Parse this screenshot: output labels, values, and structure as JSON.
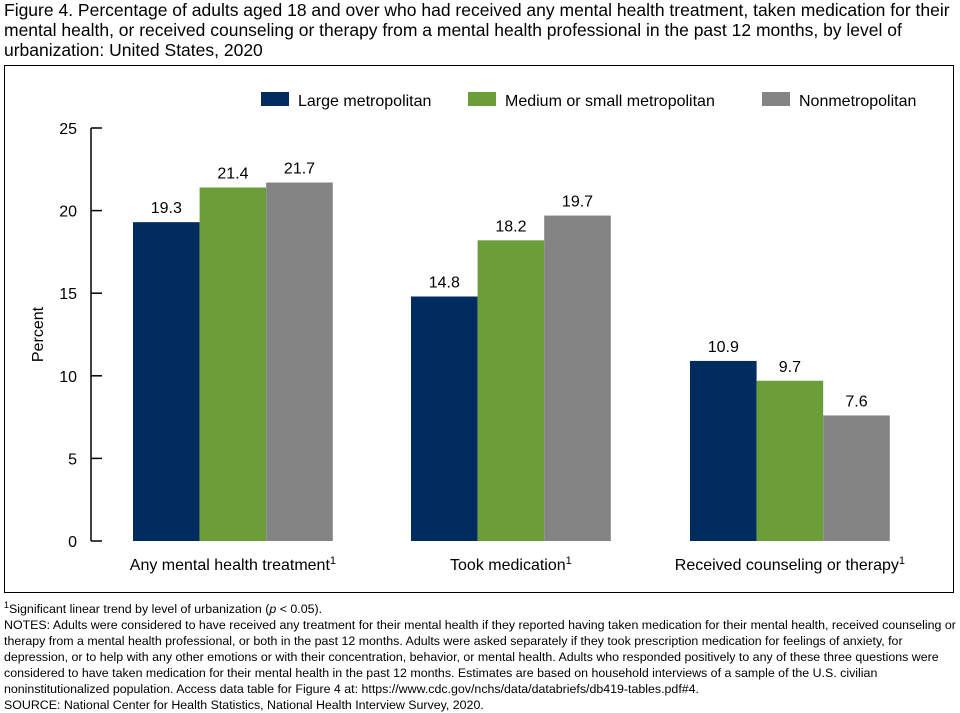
{
  "title": "Figure 4. Percentage of adults aged 18 and over who had received any mental health treatment, taken medication for their mental health, or received counseling or therapy from a mental health professional in the past 12 months, by level of urbanization: United States, 2020",
  "chart_data": {
    "type": "bar",
    "categories": [
      "Any mental health treatment",
      "Took medication",
      "Received counseling or therapy"
    ],
    "category_superscripts": [
      "1",
      "1",
      "1"
    ],
    "series": [
      {
        "name": "Large metropolitan",
        "color": "#002c5f",
        "values": [
          19.3,
          14.8,
          10.9
        ]
      },
      {
        "name": "Medium or small metropolitan",
        "color": "#6b9e38",
        "values": [
          21.4,
          18.2,
          9.7
        ]
      },
      {
        "name": "Nonmetropolitan",
        "color": "#848484",
        "values": [
          21.7,
          19.7,
          7.6
        ]
      }
    ],
    "value_labels": [
      [
        "19.3",
        "14.8",
        "10.9"
      ],
      [
        "21.4",
        "18.2",
        "9.7"
      ],
      [
        "21.7",
        "19.7",
        "7.6"
      ]
    ],
    "ylabel": "Percent",
    "ylim": [
      0,
      25
    ],
    "yticks": [
      0,
      5,
      10,
      15,
      20,
      25
    ],
    "ytick_labels": [
      "0",
      "5",
      "10",
      "15",
      "20",
      "25"
    ],
    "legend_position": "top-right",
    "grid": false
  },
  "footnote": {
    "marker": "1",
    "text": "Significant linear trend by level of urbanization (",
    "p_symbol": "p",
    "text_end": " < 0.05)."
  },
  "notes": "NOTES: Adults were considered to have received any treatment for their mental health if they reported having taken medication for their mental health, received counseling or therapy from a mental health professional, or both in the past 12 months. Adults were asked separately if they took prescription medication for feelings of anxiety, for depression, or to help with any other emotions or with their concentration, behavior, or mental health. Adults who responded positively to any of these three questions were considered to have taken medication for their mental health in the past 12 months. Estimates are based on household interviews of a sample of the U.S. civilian noninstitutionalized population. Access data table for Figure 4 at: https://www.cdc.gov/nchs/data/databriefs/db419-tables.pdf#4.",
  "source": "SOURCE: National Center for Health Statistics, National Health Interview Survey, 2020."
}
